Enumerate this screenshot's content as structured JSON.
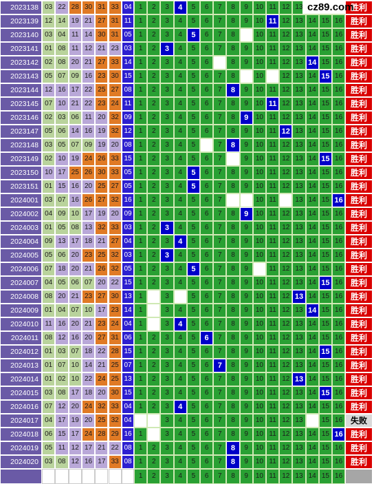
{
  "site_logo": "cz89.com",
  "results": {
    "win": "胜利",
    "fail": "失败"
  },
  "colors": {
    "period_bg": "#6a5aa6",
    "grid_green": "#29a033",
    "hit_blue": "#0000c8",
    "result_red": "#d90000"
  },
  "rows": [
    {
      "period": "2023138",
      "balls": [
        "03",
        "22",
        "28",
        "30",
        "31",
        "33"
      ],
      "blue": "04",
      "hit": 4,
      "result": "win"
    },
    {
      "period": "2023139",
      "balls": [
        "12",
        "14",
        "19",
        "21",
        "27",
        "31"
      ],
      "blue": "11",
      "hit": 11,
      "result": "win"
    },
    {
      "period": "2023140",
      "balls": [
        "03",
        "04",
        "11",
        "14",
        "30",
        "31"
      ],
      "blue": "05",
      "hit": 5,
      "result": "win"
    },
    {
      "period": "2023141",
      "balls": [
        "01",
        "08",
        "11",
        "12",
        "21",
        "23"
      ],
      "blue": "03",
      "hit": 3,
      "result": "win"
    },
    {
      "period": "2023142",
      "balls": [
        "02",
        "08",
        "20",
        "21",
        "27",
        "33"
      ],
      "blue": "14",
      "hit": 14,
      "result": "win"
    },
    {
      "period": "2023143",
      "balls": [
        "05",
        "07",
        "09",
        "16",
        "23",
        "30"
      ],
      "blue": "15",
      "hit": 15,
      "result": "win"
    },
    {
      "period": "2023144",
      "balls": [
        "12",
        "16",
        "17",
        "22",
        "25",
        "27"
      ],
      "blue": "08",
      "hit": 8,
      "result": "win"
    },
    {
      "period": "2023145",
      "balls": [
        "07",
        "10",
        "21",
        "22",
        "23",
        "24"
      ],
      "blue": "11",
      "hit": 11,
      "result": "win"
    },
    {
      "period": "2023146",
      "balls": [
        "02",
        "03",
        "06",
        "11",
        "20",
        "32"
      ],
      "blue": "09",
      "hit": 9,
      "result": "win"
    },
    {
      "period": "2023147",
      "balls": [
        "05",
        "06",
        "14",
        "16",
        "19",
        "32"
      ],
      "blue": "12",
      "hit": 12,
      "result": "win"
    },
    {
      "period": "2023148",
      "balls": [
        "03",
        "05",
        "07",
        "09",
        "19",
        "20"
      ],
      "blue": "08",
      "hit": 8,
      "result": "win"
    },
    {
      "period": "2023149",
      "balls": [
        "02",
        "10",
        "19",
        "24",
        "26",
        "33"
      ],
      "blue": "15",
      "hit": 15,
      "result": "win"
    },
    {
      "period": "2023150",
      "balls": [
        "10",
        "17",
        "25",
        "26",
        "30",
        "33"
      ],
      "blue": "05",
      "hit": 5,
      "result": "win"
    },
    {
      "period": "2023151",
      "balls": [
        "01",
        "15",
        "16",
        "20",
        "25",
        "27"
      ],
      "blue": "05",
      "hit": 5,
      "result": "win"
    },
    {
      "period": "2024001",
      "balls": [
        "03",
        "07",
        "16",
        "26",
        "27",
        "32"
      ],
      "blue": "16",
      "hit": 16,
      "result": "win"
    },
    {
      "period": "2024002",
      "balls": [
        "04",
        "09",
        "10",
        "17",
        "19",
        "20"
      ],
      "blue": "09",
      "hit": 9,
      "result": "win"
    },
    {
      "period": "2024003",
      "balls": [
        "01",
        "05",
        "08",
        "13",
        "32",
        "33"
      ],
      "blue": "03",
      "hit": 3,
      "result": "win"
    },
    {
      "period": "2024004",
      "balls": [
        "09",
        "13",
        "17",
        "18",
        "21",
        "27"
      ],
      "blue": "04",
      "hit": 4,
      "result": "win"
    },
    {
      "period": "2024005",
      "balls": [
        "05",
        "06",
        "20",
        "23",
        "25",
        "32"
      ],
      "blue": "03",
      "hit": 3,
      "result": "win"
    },
    {
      "period": "2024006",
      "balls": [
        "07",
        "18",
        "20",
        "21",
        "26",
        "32"
      ],
      "blue": "05",
      "hit": 5,
      "result": "win"
    },
    {
      "period": "2024007",
      "balls": [
        "04",
        "05",
        "06",
        "07",
        "20",
        "22"
      ],
      "blue": "15",
      "hit": 15,
      "result": "win"
    },
    {
      "period": "2024008",
      "balls": [
        "08",
        "20",
        "21",
        "23",
        "27",
        "30"
      ],
      "blue": "13",
      "hit": 13,
      "result": "win"
    },
    {
      "period": "2024009",
      "balls": [
        "01",
        "04",
        "07",
        "10",
        "17",
        "23"
      ],
      "blue": "14",
      "hit": 14,
      "result": "win"
    },
    {
      "period": "2024010",
      "balls": [
        "11",
        "16",
        "20",
        "21",
        "23",
        "24"
      ],
      "blue": "04",
      "hit": 4,
      "result": "win"
    },
    {
      "period": "2024011",
      "balls": [
        "08",
        "12",
        "16",
        "20",
        "27",
        "31"
      ],
      "blue": "06",
      "hit": 6,
      "result": "win"
    },
    {
      "period": "2024012",
      "balls": [
        "01",
        "03",
        "07",
        "18",
        "22",
        "28"
      ],
      "blue": "15",
      "hit": 15,
      "result": "win"
    },
    {
      "period": "2024013",
      "balls": [
        "01",
        "07",
        "10",
        "14",
        "21",
        "25"
      ],
      "blue": "07",
      "hit": 7,
      "result": "win"
    },
    {
      "period": "2024014",
      "balls": [
        "01",
        "02",
        "10",
        "22",
        "24",
        "25"
      ],
      "blue": "13",
      "hit": 13,
      "result": "win"
    },
    {
      "period": "2024015",
      "balls": [
        "03",
        "08",
        "17",
        "18",
        "20",
        "30"
      ],
      "blue": "15",
      "hit": 15,
      "result": "win"
    },
    {
      "period": "2024016",
      "balls": [
        "07",
        "12",
        "20",
        "24",
        "32",
        "33"
      ],
      "blue": "04",
      "hit": 4,
      "result": "win"
    },
    {
      "period": "2024017",
      "balls": [
        "04",
        "17",
        "19",
        "20",
        "25",
        "32"
      ],
      "blue": "04",
      "hit": 0,
      "result": "fail"
    },
    {
      "period": "2024018",
      "balls": [
        "06",
        "15",
        "17",
        "24",
        "28",
        "29"
      ],
      "blue": "16",
      "hit": 16,
      "result": "win"
    },
    {
      "period": "2024019",
      "balls": [
        "05",
        "11",
        "12",
        "17",
        "21",
        "22"
      ],
      "blue": "08",
      "hit": 8,
      "result": "win"
    },
    {
      "period": "2024020",
      "balls": [
        "03",
        "08",
        "12",
        "16",
        "17",
        "33"
      ],
      "blue": "08",
      "hit": 8,
      "result": "win"
    }
  ],
  "blanks": [
    [],
    [],
    [
      9
    ],
    [],
    [
      7
    ],
    [
      9,
      11
    ],
    [],
    [],
    [],
    [],
    [
      6
    ],
    [
      8
    ],
    [],
    [],
    [
      8,
      9,
      12
    ],
    [],
    [],
    [],
    [],
    [
      10
    ],
    [],
    [
      2,
      4
    ],
    [
      2
    ],
    [
      2
    ],
    [],
    [],
    [],
    [],
    [],
    [],
    [
      1,
      2,
      14
    ],
    [
      2
    ],
    [],
    []
  ],
  "orange_flags": [
    [
      0,
      0,
      1,
      1,
      1,
      1
    ],
    [
      0,
      0,
      0,
      0,
      1,
      1
    ],
    [
      0,
      0,
      0,
      0,
      1,
      1
    ],
    [
      0,
      0,
      0,
      0,
      0,
      0
    ],
    [
      0,
      0,
      0,
      0,
      1,
      1
    ],
    [
      0,
      0,
      0,
      0,
      1,
      1
    ],
    [
      0,
      0,
      0,
      0,
      1,
      1
    ],
    [
      0,
      0,
      0,
      0,
      1,
      1
    ],
    [
      0,
      0,
      0,
      0,
      0,
      1
    ],
    [
      0,
      0,
      0,
      0,
      0,
      1
    ],
    [
      0,
      0,
      0,
      0,
      0,
      0
    ],
    [
      0,
      0,
      0,
      1,
      1,
      1
    ],
    [
      0,
      0,
      1,
      1,
      1,
      1
    ],
    [
      0,
      0,
      0,
      0,
      1,
      1
    ],
    [
      0,
      0,
      0,
      1,
      1,
      1
    ],
    [
      0,
      0,
      0,
      0,
      0,
      0
    ],
    [
      0,
      0,
      0,
      0,
      1,
      1
    ],
    [
      0,
      0,
      0,
      0,
      0,
      1
    ],
    [
      0,
      0,
      0,
      1,
      1,
      1
    ],
    [
      0,
      0,
      0,
      0,
      1,
      1
    ],
    [
      0,
      0,
      0,
      0,
      0,
      0
    ],
    [
      0,
      0,
      0,
      1,
      1,
      1
    ],
    [
      0,
      0,
      0,
      0,
      0,
      1
    ],
    [
      0,
      0,
      0,
      0,
      1,
      1
    ],
    [
      0,
      0,
      0,
      0,
      1,
      1
    ],
    [
      0,
      0,
      0,
      0,
      0,
      1
    ],
    [
      0,
      0,
      0,
      0,
      0,
      1
    ],
    [
      0,
      0,
      0,
      0,
      1,
      1
    ],
    [
      0,
      0,
      0,
      0,
      0,
      1
    ],
    [
      0,
      0,
      0,
      1,
      1,
      1
    ],
    [
      0,
      0,
      0,
      0,
      1,
      1
    ],
    [
      0,
      0,
      0,
      1,
      1,
      1
    ],
    [
      0,
      0,
      0,
      0,
      0,
      0
    ],
    [
      0,
      0,
      0,
      0,
      0,
      1
    ]
  ],
  "green_flags": [
    [
      1,
      0,
      0,
      0,
      0,
      0
    ],
    [
      1,
      1,
      0,
      0,
      0,
      0
    ],
    [
      1,
      1,
      0,
      0,
      0,
      0
    ],
    [
      1,
      1,
      0,
      0,
      0,
      0
    ],
    [
      1,
      1,
      0,
      0,
      0,
      0
    ],
    [
      1,
      1,
      1,
      0,
      0,
      0
    ],
    [
      0,
      0,
      0,
      0,
      0,
      0
    ],
    [
      1,
      0,
      0,
      0,
      0,
      0
    ],
    [
      1,
      1,
      1,
      0,
      0,
      0
    ],
    [
      1,
      1,
      0,
      0,
      0,
      0
    ],
    [
      1,
      1,
      1,
      1,
      0,
      0
    ],
    [
      1,
      0,
      0,
      0,
      0,
      0
    ],
    [
      0,
      0,
      0,
      0,
      0,
      0
    ],
    [
      1,
      0,
      0,
      0,
      0,
      0
    ],
    [
      1,
      1,
      0,
      0,
      0,
      0
    ],
    [
      1,
      1,
      1,
      0,
      0,
      0
    ],
    [
      1,
      1,
      1,
      0,
      0,
      0
    ],
    [
      1,
      0,
      0,
      0,
      0,
      0
    ],
    [
      1,
      1,
      0,
      0,
      0,
      0
    ],
    [
      1,
      0,
      0,
      0,
      0,
      0
    ],
    [
      1,
      1,
      1,
      1,
      0,
      0
    ],
    [
      1,
      0,
      0,
      0,
      0,
      0
    ],
    [
      1,
      1,
      1,
      1,
      0,
      0
    ],
    [
      0,
      0,
      0,
      0,
      0,
      0
    ],
    [
      1,
      0,
      0,
      0,
      0,
      0
    ],
    [
      1,
      1,
      1,
      0,
      0,
      0
    ],
    [
      1,
      1,
      1,
      0,
      0,
      0
    ],
    [
      1,
      1,
      1,
      0,
      0,
      0
    ],
    [
      1,
      1,
      0,
      0,
      0,
      0
    ],
    [
      1,
      0,
      0,
      0,
      0,
      0
    ],
    [
      1,
      0,
      0,
      0,
      0,
      0
    ],
    [
      1,
      0,
      0,
      0,
      0,
      0
    ],
    [
      1,
      0,
      0,
      0,
      0,
      0
    ],
    [
      1,
      1,
      0,
      0,
      0,
      0
    ]
  ],
  "footer_numbers": [
    "1",
    "2",
    "3",
    "4",
    "5",
    "6",
    "7",
    "8",
    "9",
    "10",
    "11",
    "12",
    "13",
    "14",
    "15",
    "16"
  ]
}
